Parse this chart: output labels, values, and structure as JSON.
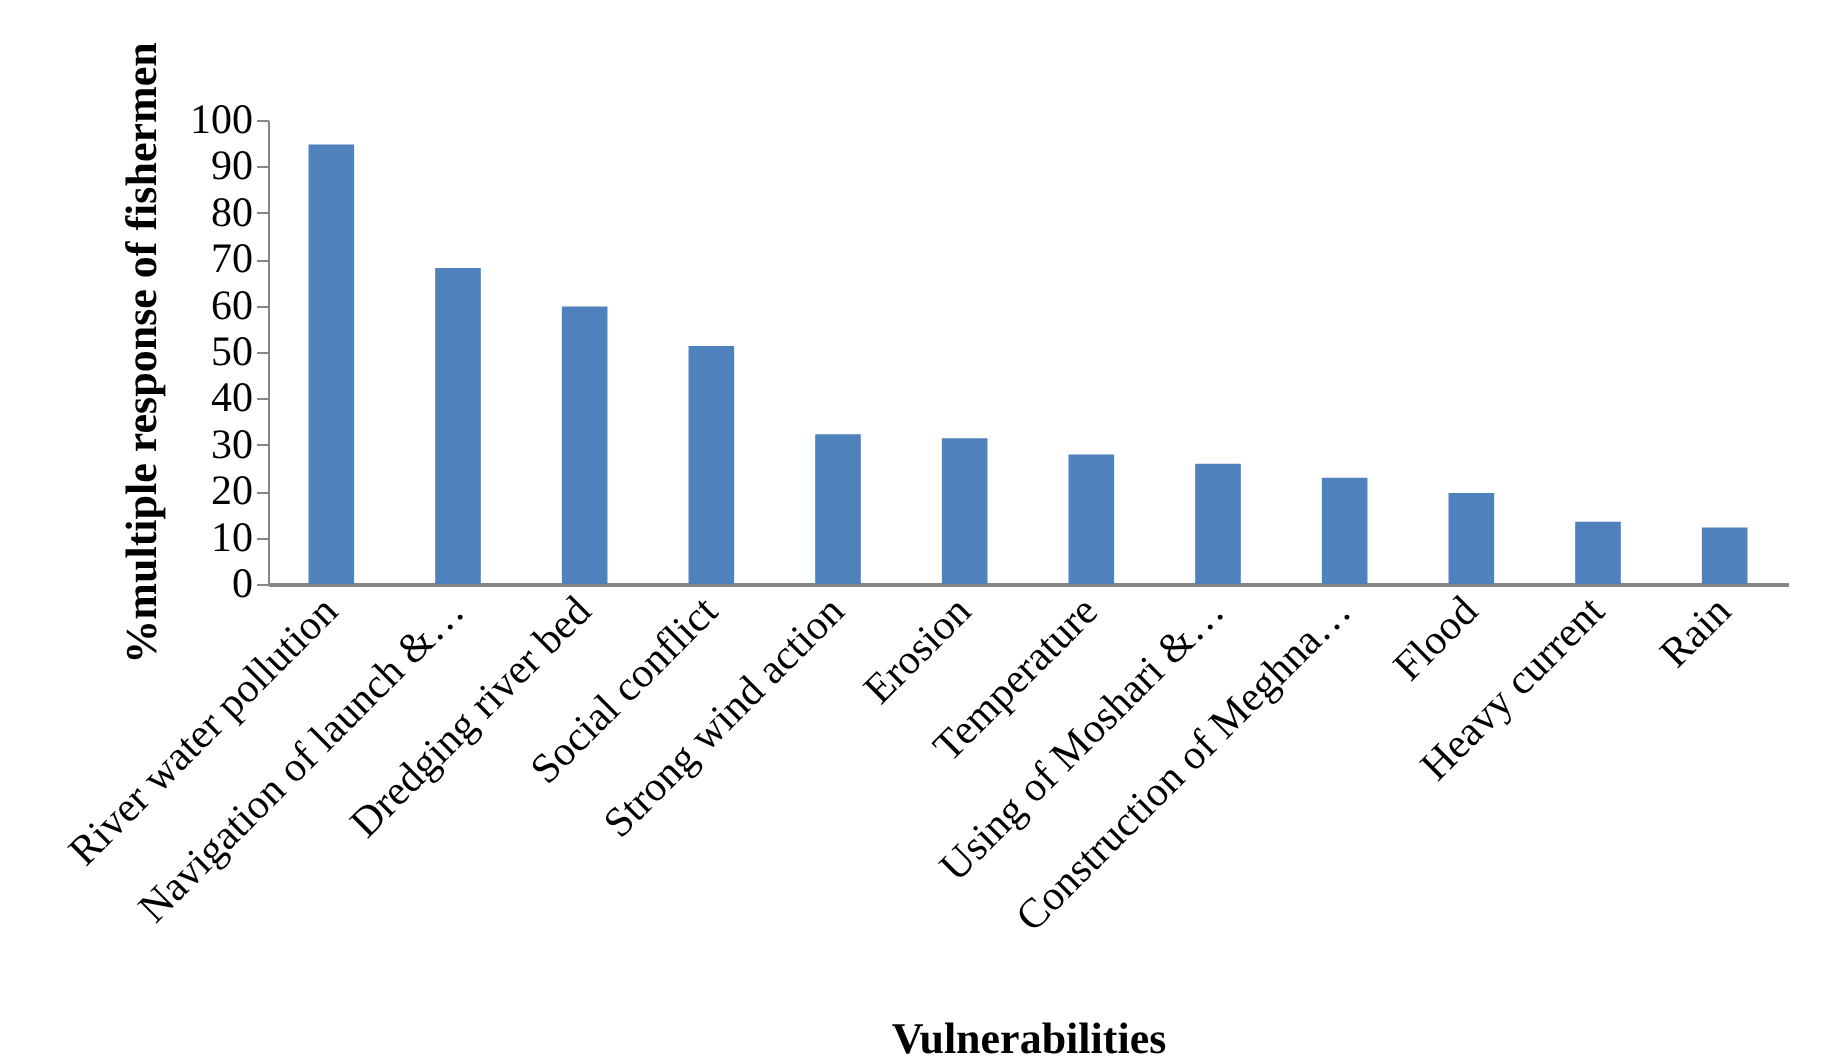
{
  "chart_data": {
    "type": "bar",
    "xlabel": "Vulnerabilities",
    "ylabel": "%multiple response of fishermen",
    "categories": [
      "River water pollution",
      "Navigation of launch &…",
      "Dredging river bed",
      "Social conflict",
      "Strong wind action",
      "Erosion",
      "Temperature",
      "Using of Moshari &…",
      "Construction of Meghna…",
      "Flood",
      "Heavy current",
      "Rain"
    ],
    "values": [
      94.7,
      68.1,
      59.8,
      51.3,
      32.3,
      31.4,
      27.9,
      25.9,
      22.9,
      19.6,
      13.4,
      12.2
    ],
    "color": "#4f81bd",
    "ylim": [
      0,
      100
    ],
    "yticks": [
      0,
      10,
      20,
      30,
      40,
      50,
      60,
      70,
      80,
      90,
      100
    ],
    "grid": false
  }
}
